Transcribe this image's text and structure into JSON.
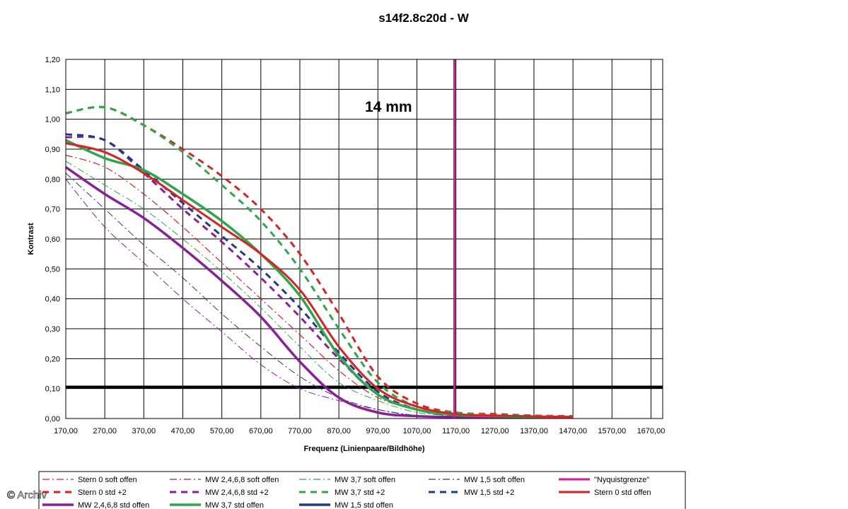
{
  "chart_data": {
    "type": "line",
    "title": "s14f2.8c20d - W",
    "annotation": "14 mm",
    "xlabel": "Frequenz (Linienpaare/Bildhöhe)",
    "ylabel": "Kontrast",
    "xlim": [
      170,
      1700
    ],
    "ylim": [
      0,
      1.2
    ],
    "grid": true,
    "x_ticks": [
      "170,00",
      "270,00",
      "370,00",
      "470,00",
      "570,00",
      "670,00",
      "770,00",
      "870,00",
      "970,00",
      "1070,00",
      "1170,00",
      "1270,00",
      "1370,00",
      "1470,00",
      "1570,00",
      "1670,00"
    ],
    "y_ticks": [
      "0,00",
      "0,10",
      "0,20",
      "0,30",
      "0,40",
      "0,50",
      "0,60",
      "0,70",
      "0,80",
      "0,90",
      "1,00",
      "1,10",
      "1,20"
    ],
    "reference_line": {
      "y": 0.105,
      "color": "#000000"
    },
    "legend_placement": "bottom",
    "x": [
      170,
      270,
      370,
      470,
      570,
      670,
      770,
      870,
      970,
      1070,
      1170,
      1270,
      1370,
      1470
    ],
    "series": [
      {
        "name": "Stern 0 soft offen",
        "color": "#e02020",
        "style": "dashdot",
        "width": 1.2,
        "values": [
          0.88,
          0.84,
          0.75,
          0.64,
          0.52,
          0.4,
          0.28,
          0.16,
          0.07,
          0.03,
          0.01,
          0.005,
          0.003,
          0.003
        ]
      },
      {
        "name": "MW 2,4,6,8 soft offen",
        "color": "#8a1f9a",
        "style": "dashdot",
        "width": 1.0,
        "values": [
          0.8,
          0.64,
          0.52,
          0.4,
          0.29,
          0.18,
          0.1,
          0.06,
          0.03,
          0.01,
          0.005,
          0.003,
          0.002,
          0.002
        ]
      },
      {
        "name": "MW 3,7 soft offen",
        "color": "#2aa84a",
        "style": "dashdot",
        "width": 1.0,
        "values": [
          0.86,
          0.78,
          0.7,
          0.6,
          0.49,
          0.37,
          0.24,
          0.12,
          0.06,
          0.02,
          0.01,
          0.005,
          0.003,
          0.003
        ]
      },
      {
        "name": "MW 1,5 soft offen",
        "color": "#1f3a8a",
        "style": "dashdot",
        "width": 1.0,
        "values": [
          0.82,
          0.7,
          0.58,
          0.47,
          0.35,
          0.24,
          0.14,
          0.07,
          0.03,
          0.01,
          0.005,
          0.003,
          0.002,
          0.002
        ]
      },
      {
        "name": "\"Nyquistgrenze\"",
        "color": "#e0148c",
        "style": "vline",
        "width": 3,
        "x": 1166
      },
      {
        "name": "Stern 0 std +2",
        "color": "#e02020",
        "style": "dash",
        "width": 3,
        "values": [
          1.02,
          1.04,
          0.98,
          0.9,
          0.81,
          0.7,
          0.55,
          0.35,
          0.14,
          0.05,
          0.02,
          0.015,
          0.01,
          0.008
        ]
      },
      {
        "name": "MW 2,4,6,8 std +2",
        "color": "#8a1f9a",
        "style": "dash",
        "width": 3,
        "values": [
          0.94,
          0.93,
          0.82,
          0.7,
          0.59,
          0.47,
          0.34,
          0.2,
          0.08,
          0.03,
          0.01,
          0.008,
          0.006,
          0.005
        ]
      },
      {
        "name": "MW 3,7 std +2",
        "color": "#2aa84a",
        "style": "dash",
        "width": 3,
        "values": [
          1.02,
          1.04,
          0.98,
          0.89,
          0.78,
          0.66,
          0.5,
          0.3,
          0.12,
          0.04,
          0.02,
          0.012,
          0.009,
          0.007
        ]
      },
      {
        "name": "MW 1,5 std +2",
        "color": "#1f3a8a",
        "style": "dash",
        "width": 3,
        "values": [
          0.95,
          0.93,
          0.83,
          0.72,
          0.61,
          0.5,
          0.37,
          0.22,
          0.09,
          0.03,
          0.01,
          0.008,
          0.006,
          0.005
        ]
      },
      {
        "name": "Stern 0 std offen",
        "color": "#e02020",
        "style": "solid",
        "width": 3,
        "values": [
          0.92,
          0.89,
          0.82,
          0.73,
          0.64,
          0.55,
          0.43,
          0.24,
          0.1,
          0.04,
          0.015,
          0.01,
          0.007,
          0.005
        ]
      },
      {
        "name": "MW 2,4,6,8 std offen",
        "color": "#8a1f9a",
        "style": "solid",
        "width": 3.5,
        "values": [
          0.84,
          0.75,
          0.67,
          0.57,
          0.46,
          0.34,
          0.19,
          0.07,
          0.02,
          0.008,
          0.005,
          0.004,
          0.003,
          0.003
        ]
      },
      {
        "name": "MW 3,7 std offen",
        "color": "#2aa84a",
        "style": "solid",
        "width": 3.5,
        "values": [
          0.93,
          0.87,
          0.83,
          0.75,
          0.66,
          0.55,
          0.41,
          0.21,
          0.08,
          0.03,
          0.012,
          0.008,
          0.006,
          0.005
        ]
      },
      {
        "name": "MW 1,5 std offen",
        "color": "#1f3a8a",
        "style": "solid",
        "width": 3.5,
        "values": [
          0.86,
          0.78,
          0.7,
          0.6,
          0.5,
          0.4,
          0.27,
          0.13,
          0.05,
          0.02,
          0.008,
          0.005,
          0.004,
          0.003
        ]
      }
    ]
  },
  "credit": "© Archiv"
}
